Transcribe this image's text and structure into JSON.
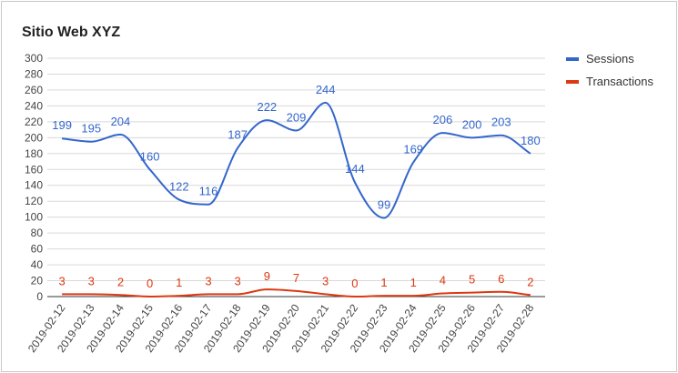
{
  "chart_data": {
    "type": "line",
    "title": "Sitio Web XYZ",
    "xlabel": "",
    "ylabel": "",
    "ylim": [
      0,
      300
    ],
    "yticks": [
      0,
      20,
      40,
      60,
      80,
      100,
      120,
      140,
      160,
      180,
      200,
      220,
      240,
      260,
      280,
      300
    ],
    "grid": true,
    "legend": "right",
    "curve": "smooth",
    "categories": [
      "2019-02-12",
      "2019-02-13",
      "2019-02-14",
      "2019-02-15",
      "2019-02-16",
      "2019-02-17",
      "2019-02-18",
      "2019-02-19",
      "2019-02-20",
      "2019-02-21",
      "2019-02-22",
      "2019-02-23",
      "2019-02-24",
      "2019-02-25",
      "2019-02-26",
      "2019-02-27",
      "2019-02-28"
    ],
    "series": [
      {
        "name": "Sessions",
        "color": "#3366cc",
        "values": [
          199,
          195,
          204,
          160,
          122,
          116,
          187,
          222,
          209,
          244,
          144,
          99,
          169,
          206,
          200,
          203,
          180
        ]
      },
      {
        "name": "Transactions",
        "color": "#dc3912",
        "values": [
          3,
          3,
          2,
          0,
          1,
          3,
          3,
          9,
          7,
          3,
          0,
          1,
          1,
          4,
          5,
          6,
          2
        ]
      }
    ]
  }
}
